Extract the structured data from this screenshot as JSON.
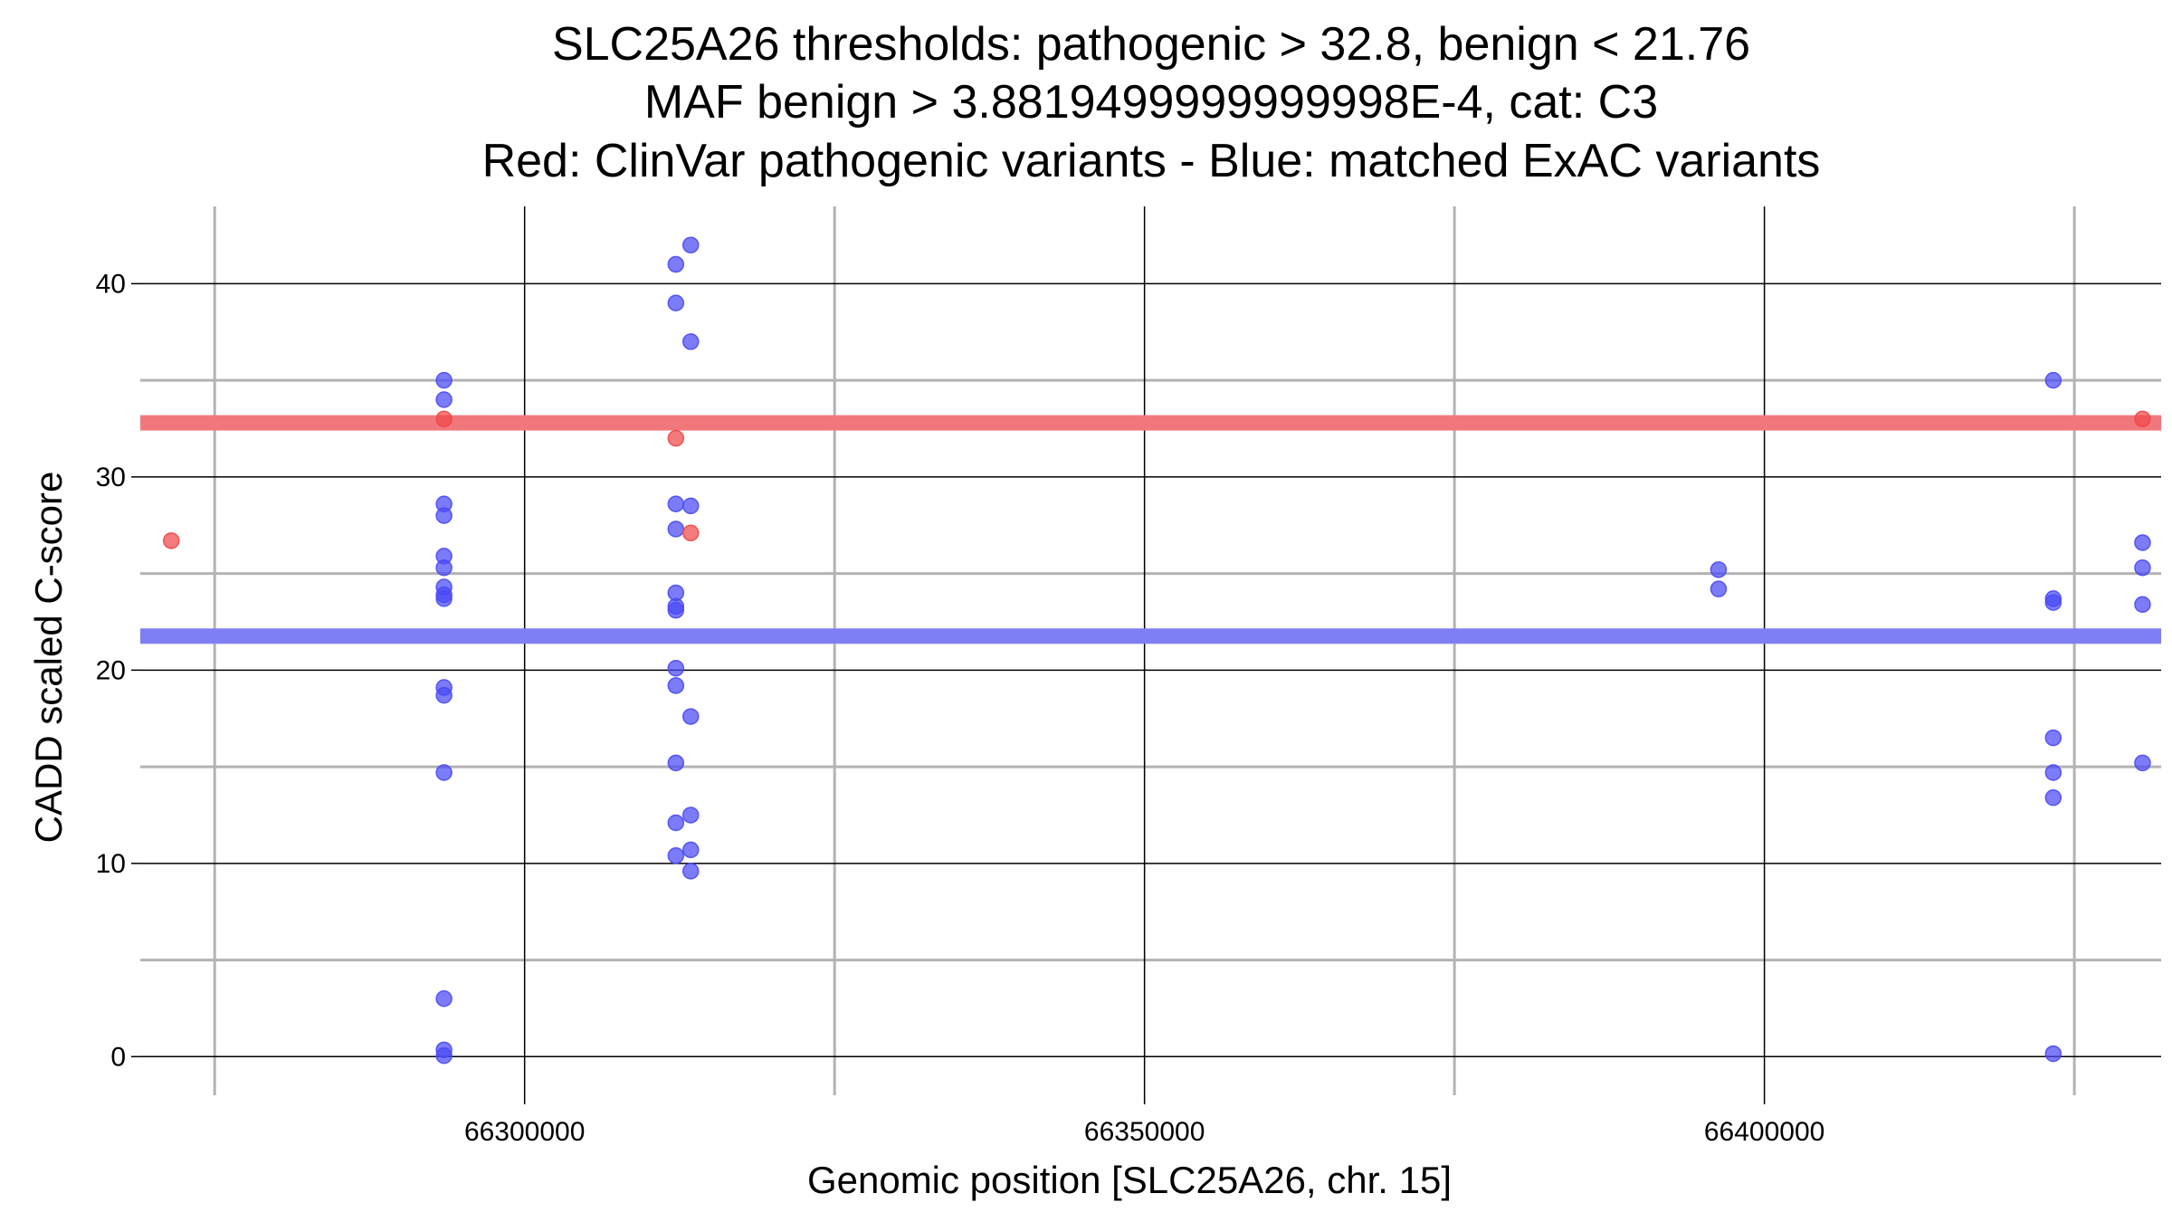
{
  "chart_data": {
    "type": "scatter",
    "title_lines": [
      "SLC25A26 thresholds: pathogenic > 32.8, benign < 21.76",
      "MAF benign > 3.8819499999999998E-4, cat: C3",
      "Red: ClinVar pathogenic variants - Blue: matched ExAC variants"
    ],
    "xlabel": "Genomic position [SLC25A26, chr. 15]",
    "ylabel": "CADD scaled C-score",
    "xlim": [
      66269000,
      66432000
    ],
    "ylim": [
      -2,
      44
    ],
    "x_ticks": [
      66300000,
      66350000,
      66400000
    ],
    "x_tick_labels": [
      "66300000",
      "66350000",
      "66400000"
    ],
    "x_minor_ticks": [
      66275000,
      66325000,
      66375000,
      66425000
    ],
    "y_ticks": [
      0,
      10,
      20,
      30,
      40
    ],
    "y_tick_labels": [
      "0",
      "10",
      "20",
      "30",
      "40"
    ],
    "y_minor_ticks": [
      5,
      15,
      25,
      35
    ],
    "grid": true,
    "thresholds": [
      {
        "name": "pathogenic",
        "value": 32.8,
        "color": "#f0787d"
      },
      {
        "name": "benign",
        "value": 21.76,
        "color": "#7f7ff5"
      }
    ],
    "series": [
      {
        "name": "ClinVar pathogenic",
        "color": "#f04848",
        "points": [
          [
            66271500,
            26.7
          ],
          [
            66293500,
            33.0
          ],
          [
            66312200,
            32.0
          ],
          [
            66313400,
            27.1
          ],
          [
            66430500,
            33.0
          ]
        ]
      },
      {
        "name": "matched ExAC",
        "color": "#4a4af5",
        "points": [
          [
            66293500,
            35.0
          ],
          [
            66293500,
            34.0
          ],
          [
            66293500,
            28.6
          ],
          [
            66293500,
            28.0
          ],
          [
            66293500,
            25.9
          ],
          [
            66293500,
            25.3
          ],
          [
            66293500,
            24.3
          ],
          [
            66293500,
            23.9
          ],
          [
            66293500,
            23.7
          ],
          [
            66293500,
            19.1
          ],
          [
            66293500,
            18.7
          ],
          [
            66293500,
            14.7
          ],
          [
            66293500,
            3.0
          ],
          [
            66293500,
            0.35
          ],
          [
            66293500,
            0.05
          ],
          [
            66312200,
            41.0
          ],
          [
            66312200,
            39.0
          ],
          [
            66312200,
            28.6
          ],
          [
            66312200,
            27.3
          ],
          [
            66312200,
            24.0
          ],
          [
            66312200,
            23.3
          ],
          [
            66312200,
            23.1
          ],
          [
            66312200,
            20.1
          ],
          [
            66312200,
            19.2
          ],
          [
            66312200,
            15.2
          ],
          [
            66312200,
            12.1
          ],
          [
            66312200,
            10.4
          ],
          [
            66313400,
            42.0
          ],
          [
            66313400,
            37.0
          ],
          [
            66313400,
            28.5
          ],
          [
            66313400,
            17.6
          ],
          [
            66313400,
            12.5
          ],
          [
            66313400,
            10.7
          ],
          [
            66313400,
            9.6
          ],
          [
            66396300,
            25.2
          ],
          [
            66396300,
            24.2
          ],
          [
            66423300,
            35.0
          ],
          [
            66423300,
            23.7
          ],
          [
            66423300,
            23.5
          ],
          [
            66423300,
            16.5
          ],
          [
            66423300,
            14.7
          ],
          [
            66423300,
            13.4
          ],
          [
            66423300,
            0.15
          ],
          [
            66430500,
            26.6
          ],
          [
            66430500,
            25.3
          ],
          [
            66430500,
            23.4
          ],
          [
            66430500,
            15.2
          ]
        ]
      }
    ]
  }
}
